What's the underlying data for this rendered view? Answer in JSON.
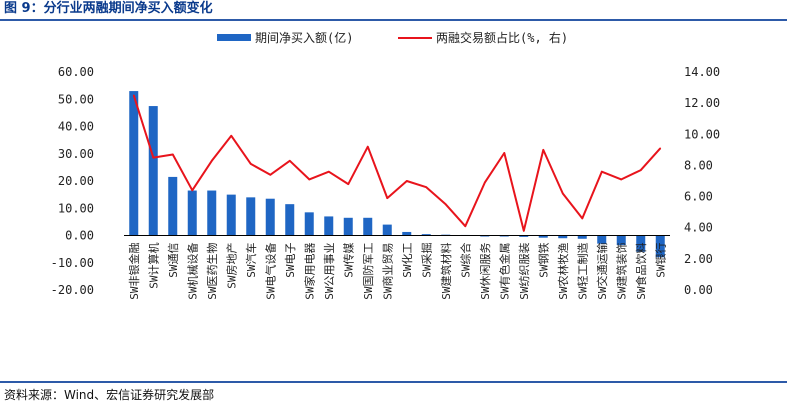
{
  "header": {
    "title": "图 9：分行业两融期间净买入额变化"
  },
  "footer": {
    "source": "资料来源：Wind、宏信证券研究发展部"
  },
  "colors": {
    "bar": "#1f66c4",
    "line": "#e8141c",
    "axis": "#000000",
    "rule": "#2d5aa8"
  },
  "chart_data": {
    "type": "bar+line",
    "title": "",
    "legend": [
      {
        "name": "期间净买入额(亿)",
        "type": "bar"
      },
      {
        "name": "两融交易额占比(%, 右)",
        "type": "line"
      }
    ],
    "legend_position": "top-center",
    "categories": [
      "SW非银金融",
      "SW计算机",
      "SW通信",
      "SW机械设备",
      "SW医药生物",
      "SW房地产",
      "SW汽车",
      "SW电气设备",
      "SW电子",
      "SW家用电器",
      "SW公用事业",
      "SW传媒",
      "SW国防军工",
      "SW商业贸易",
      "SW化工",
      "SW采掘",
      "SW建筑材料",
      "SW综合",
      "SW休闲服务",
      "SW有色金属",
      "SW纺织服装",
      "SW钢铁",
      "SW农林牧渔",
      "SW轻工制造",
      "SW交通运输",
      "SW建筑装饰",
      "SW食品饮料",
      "SW银行"
    ],
    "series": [
      {
        "name": "期间净买入额(亿)",
        "axis": "left",
        "values": [
          53.0,
          47.5,
          21.5,
          16.5,
          16.5,
          15.0,
          14.0,
          13.5,
          11.5,
          8.5,
          7.0,
          6.5,
          6.5,
          4.0,
          1.3,
          0.5,
          0.3,
          0.2,
          -0.2,
          -0.3,
          -0.5,
          -0.8,
          -1.0,
          -1.2,
          -3.0,
          -3.5,
          -6.0,
          -8.0
        ]
      },
      {
        "name": "两融交易额占比(%, 右)",
        "axis": "right",
        "values": [
          12.5,
          8.5,
          8.7,
          6.4,
          8.3,
          9.9,
          8.1,
          7.4,
          8.3,
          7.1,
          7.6,
          6.8,
          9.2,
          5.9,
          7.0,
          6.6,
          5.5,
          4.1,
          6.9,
          8.8,
          3.8,
          9.0,
          6.2,
          4.6,
          7.6,
          7.1,
          7.7,
          9.1
        ]
      }
    ],
    "y_left": {
      "min": -20,
      "max": 60,
      "ticks": [
        "60.00",
        "50.00",
        "40.00",
        "30.00",
        "20.00",
        "10.00",
        "0.00",
        "-10.00",
        "-20.00"
      ]
    },
    "y_right": {
      "min": 0,
      "max": 14,
      "ticks": [
        "14.00",
        "12.00",
        "10.00",
        "8.00",
        "6.00",
        "4.00",
        "2.00",
        "0.00"
      ]
    },
    "grid": false
  }
}
